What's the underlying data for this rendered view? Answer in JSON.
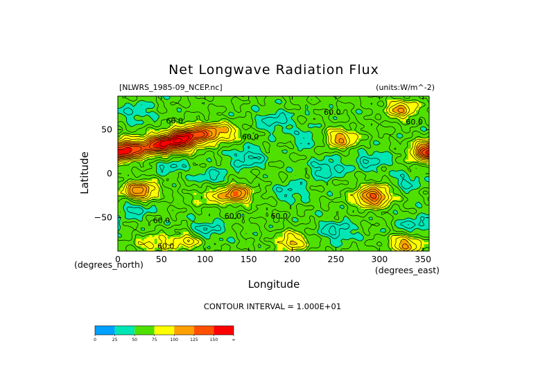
{
  "chart_data": {
    "type": "heatmap",
    "title": "Net Longwave Radiation Flux",
    "source_label": "[NLWRS_1985-09_NCEP.nc]",
    "units_label": "(units:W/m^-2)",
    "xlabel": "Longitude",
    "ylabel": "Latitude",
    "x_unit_label": "(degrees_east)",
    "y_unit_label": "(degrees_north)",
    "xlim": [
      0,
      357
    ],
    "ylim": [
      -88,
      88
    ],
    "x_ticks": [
      0,
      50,
      100,
      150,
      200,
      250,
      300,
      350
    ],
    "y_ticks": [
      50,
      0,
      -50
    ],
    "contour_interval_text": "CONTOUR INTERVAL = 1.000E+01",
    "contour_labels": [
      {
        "text": "60.0",
        "lon": 65,
        "lat": 60
      },
      {
        "text": "60.0",
        "lon": 152,
        "lat": 42
      },
      {
        "text": "60.0",
        "lon": 246,
        "lat": 70
      },
      {
        "text": "60.0",
        "lon": 340,
        "lat": 59
      },
      {
        "text": "60.0",
        "lon": 132,
        "lat": -48
      },
      {
        "text": "60.0",
        "lon": 50,
        "lat": -53
      },
      {
        "text": "60.0",
        "lon": 185,
        "lat": -48
      },
      {
        "text": "60.0",
        "lon": 55,
        "lat": -82
      }
    ],
    "colorbar": {
      "levels": [
        "0",
        "25",
        "50",
        "75",
        "100",
        "125",
        "150",
        "∞"
      ],
      "colors": [
        "#00a0ff",
        "#00e6b4",
        "#50e000",
        "#ffff00",
        "#ffa000",
        "#ff5000",
        "#ff0000"
      ]
    },
    "features": [
      {
        "lon": 45,
        "lat": 32,
        "value": 130
      },
      {
        "lon": 68,
        "lat": 36,
        "value": 135
      },
      {
        "lon": 85,
        "lat": 44,
        "value": 115
      },
      {
        "lon": 105,
        "lat": 46,
        "value": 95
      },
      {
        "lon": 125,
        "lat": 48,
        "value": 85
      },
      {
        "lon": 15,
        "lat": 27,
        "value": 120
      },
      {
        "lon": 25,
        "lat": -20,
        "value": 128
      },
      {
        "lon": 135,
        "lat": -23,
        "value": 125
      },
      {
        "lon": 100,
        "lat": -25,
        "value": 80
      },
      {
        "lon": 255,
        "lat": 40,
        "value": 110
      },
      {
        "lon": 325,
        "lat": 73,
        "value": 105
      },
      {
        "lon": 355,
        "lat": 25,
        "value": 130
      },
      {
        "lon": 290,
        "lat": -28,
        "value": 115
      },
      {
        "lon": 300,
        "lat": -20,
        "value": 85
      },
      {
        "lon": 150,
        "lat": 18,
        "value": 30
      },
      {
        "lon": 240,
        "lat": 5,
        "value": 32
      },
      {
        "lon": 110,
        "lat": -5,
        "value": 38
      },
      {
        "lon": 20,
        "lat": -38,
        "value": 35
      },
      {
        "lon": 290,
        "lat": 15,
        "value": 35
      },
      {
        "lon": 330,
        "lat": -10,
        "value": 38
      },
      {
        "lon": 60,
        "lat": 10,
        "value": 40
      },
      {
        "lon": 200,
        "lat": -20,
        "value": 40
      },
      {
        "lon": 180,
        "lat": 60,
        "value": 35
      },
      {
        "lon": 100,
        "lat": -65,
        "value": 30
      },
      {
        "lon": 250,
        "lat": -65,
        "value": 30
      },
      {
        "lon": 340,
        "lat": -60,
        "value": 35
      },
      {
        "lon": 20,
        "lat": 70,
        "value": 40
      },
      {
        "lon": 220,
        "lat": 40,
        "value": 40
      },
      {
        "lon": 80,
        "lat": -75,
        "value": 95
      },
      {
        "lon": 200,
        "lat": -77,
        "value": 100
      },
      {
        "lon": 330,
        "lat": -80,
        "value": 110
      },
      {
        "lon": 40,
        "lat": -80,
        "value": 85
      }
    ]
  }
}
